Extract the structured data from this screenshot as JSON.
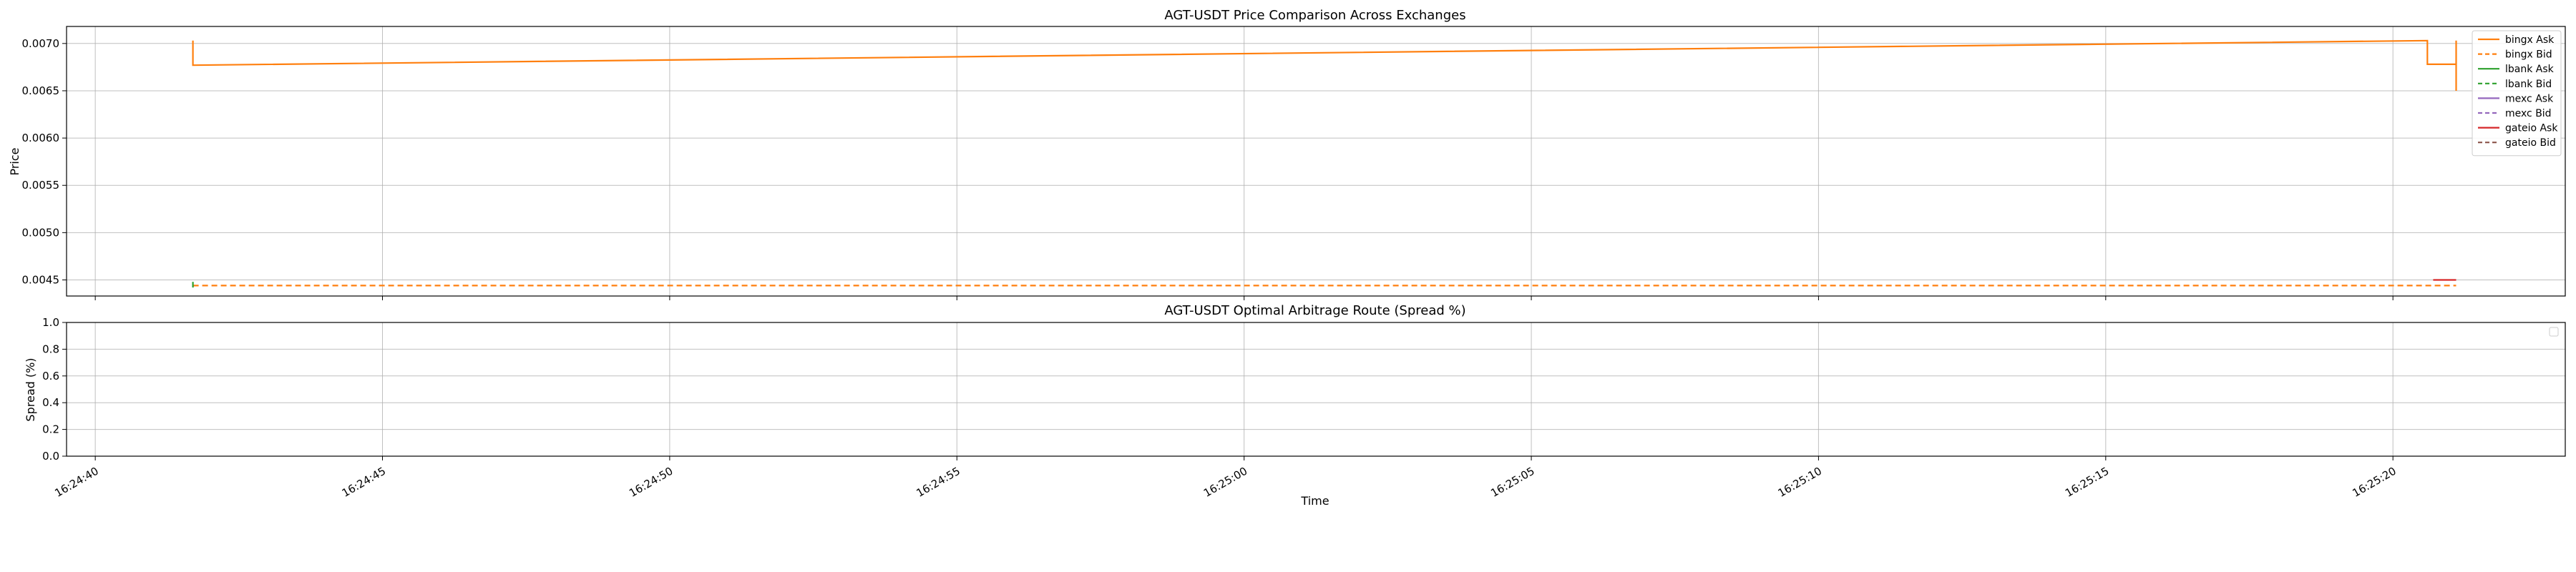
{
  "chart_data": [
    {
      "type": "line",
      "title": "AGT-USDT Price Comparison Across Exchanges",
      "xlabel": "",
      "ylabel": "Price",
      "xlim": [
        "16:24:39.5",
        "16:25:23.0"
      ],
      "ylim": [
        0.00433,
        0.00718
      ],
      "yticks": [
        "0.0045",
        "0.0050",
        "0.0055",
        "0.0060",
        "0.0065",
        "0.0070"
      ],
      "ytick_values": [
        0.0045,
        0.005,
        0.0055,
        0.006,
        0.0065,
        0.007
      ],
      "xticks": [
        "16:24:40",
        "16:24:45",
        "16:24:50",
        "16:24:55",
        "16:25:00",
        "16:25:05",
        "16:25:10",
        "16:25:15",
        "16:25:20"
      ],
      "xtick_values": [
        "16:24:40",
        "16:24:45",
        "16:24:50",
        "16:24:55",
        "16:25:00",
        "16:25:05",
        "16:25:10",
        "16:25:15",
        "16:25:20"
      ],
      "grid": true,
      "legend": "upper-right",
      "series": [
        {
          "name": "bingx Ask",
          "color": "#ff7f0e",
          "dash": "solid",
          "points": [
            [
              "16:24:41.7",
              0.00703
            ],
            [
              "16:24:41.7",
              0.00677
            ],
            [
              "16:25:20.6",
              0.00703
            ],
            [
              "16:25:20.6",
              0.00678
            ],
            [
              "16:25:21.1",
              0.00678
            ],
            [
              "16:25:21.1",
              0.0065
            ],
            [
              "16:25:21.1",
              0.00703
            ]
          ]
        },
        {
          "name": "bingx Bid",
          "color": "#ff7f0e",
          "dash": "dashed",
          "points": [
            [
              "16:24:41.7",
              0.00444
            ],
            [
              "16:25:21.1",
              0.00444
            ]
          ]
        },
        {
          "name": "lbank Ask",
          "color": "#2ca02c",
          "dash": "solid",
          "points": [
            [
              "16:24:41.7",
              0.00448
            ],
            [
              "16:24:41.7",
              0.00442
            ]
          ]
        },
        {
          "name": "lbank Bid",
          "color": "#2ca02c",
          "dash": "dashed",
          "points": []
        },
        {
          "name": "mexc Ask",
          "color": "#9467bd",
          "dash": "solid",
          "points": []
        },
        {
          "name": "mexc Bid",
          "color": "#9467bd",
          "dash": "dashed",
          "points": []
        },
        {
          "name": "gateio Ask",
          "color": "#d62728",
          "dash": "solid",
          "points": [
            [
              "16:25:20.7",
              0.0045
            ],
            [
              "16:25:21.1",
              0.0045
            ]
          ]
        },
        {
          "name": "gateio Bid",
          "color": "#8c564b",
          "dash": "dashed",
          "points": []
        }
      ]
    },
    {
      "type": "line",
      "title": "AGT-USDT Optimal Arbitrage Route (Spread %)",
      "xlabel": "Time",
      "ylabel": "Spread (%)",
      "xlim": [
        "16:24:39.5",
        "16:25:23.0"
      ],
      "ylim": [
        0.0,
        1.0
      ],
      "yticks": [
        "0.0",
        "0.2",
        "0.4",
        "0.6",
        "0.8",
        "1.0"
      ],
      "ytick_values": [
        0.0,
        0.2,
        0.4,
        0.6,
        0.8,
        1.0
      ],
      "xticks": [
        "16:24:40",
        "16:24:45",
        "16:24:50",
        "16:24:55",
        "16:25:00",
        "16:25:05",
        "16:25:10",
        "16:25:15",
        "16:25:20"
      ],
      "xtick_values": [
        "16:24:40",
        "16:24:45",
        "16:24:50",
        "16:24:55",
        "16:25:00",
        "16:25:05",
        "16:25:10",
        "16:25:15",
        "16:25:20"
      ],
      "grid": true,
      "legend": "upper-right",
      "series": []
    }
  ]
}
